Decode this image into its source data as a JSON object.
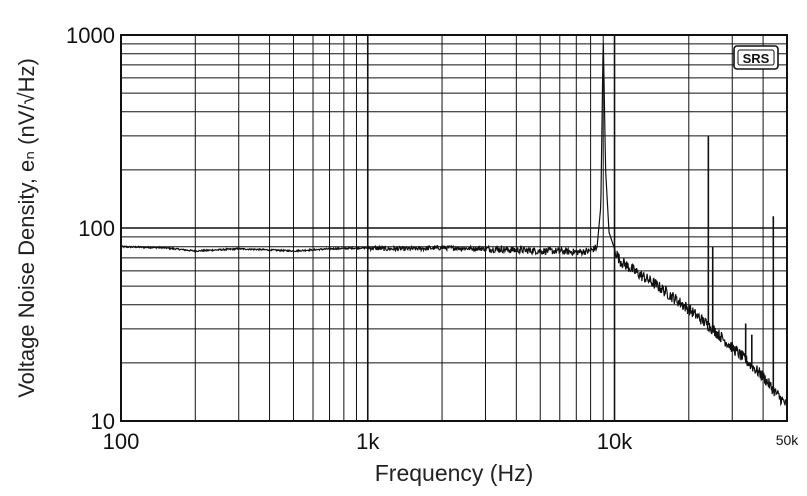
{
  "chart_data": {
    "type": "line",
    "xlabel": "Frequency (Hz)",
    "ylabel": "Voltage Noise Density, eₙ (nV/√Hz)",
    "xscale": "log",
    "yscale": "log",
    "xlim": [
      100,
      50000
    ],
    "ylim": [
      10,
      1000
    ],
    "grid": true,
    "x_ticks": [
      {
        "value": 100,
        "label": "100"
      },
      {
        "value": 1000,
        "label": "1k"
      },
      {
        "value": 10000,
        "label": "10k"
      },
      {
        "value": 50000,
        "label": "50k"
      }
    ],
    "y_ticks": [
      {
        "value": 10,
        "label": "10"
      },
      {
        "value": 100,
        "label": "100"
      },
      {
        "value": 1000,
        "label": "1000"
      }
    ],
    "logo": "SRS",
    "series": [
      {
        "x": [
          100,
          150,
          200,
          300,
          400,
          500,
          700,
          1000,
          1200,
          1500,
          2000,
          3000,
          4000,
          5000,
          6000,
          7000,
          8000,
          8500,
          8800,
          9000,
          9200,
          9500,
          10000,
          10500,
          11000,
          12000,
          15000,
          20000,
          25000,
          30000,
          35000,
          40000,
          45000,
          50000
        ],
        "y": [
          80,
          79,
          76,
          78,
          77,
          76,
          78,
          79,
          78,
          78,
          79,
          78,
          77,
          76,
          76,
          75,
          76,
          80,
          130,
          1000,
          200,
          95,
          78,
          68,
          65,
          60,
          50,
          38,
          30,
          24,
          20,
          17,
          14,
          12
        ]
      }
    ],
    "spikes": [
      {
        "x": 24000,
        "y": 300
      },
      {
        "x": 25000,
        "y": 80
      },
      {
        "x": 34000,
        "y": 32
      },
      {
        "x": 36000,
        "y": 28
      },
      {
        "x": 44000,
        "y": 115
      }
    ]
  }
}
